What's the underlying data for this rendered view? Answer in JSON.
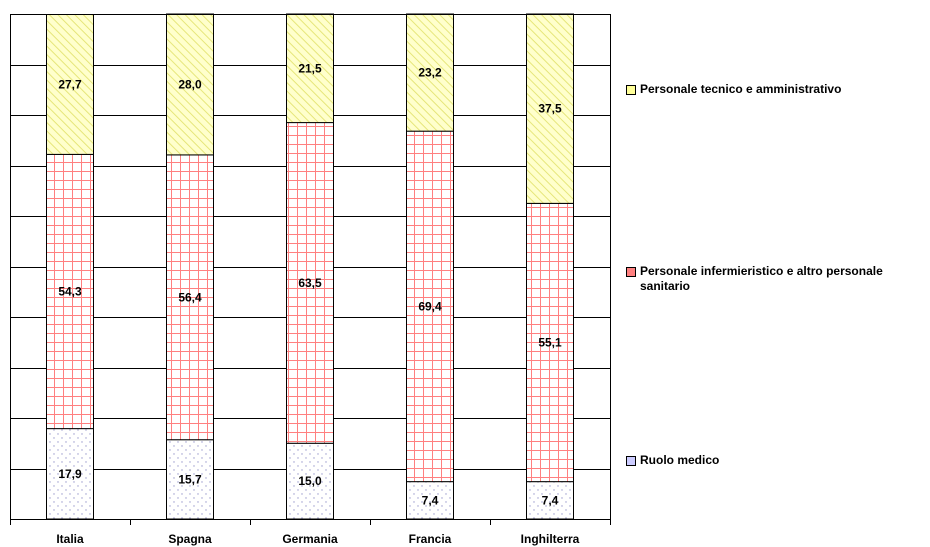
{
  "chart_data": {
    "type": "bar",
    "stacked": true,
    "categories": [
      "Italia",
      "Spagna",
      "Germania",
      "Francia",
      "Inghilterra"
    ],
    "series": [
      {
        "name": "Ruolo medico",
        "values": [
          17.9,
          15.7,
          15.0,
          7.4,
          7.4
        ],
        "labels": [
          "17,9",
          "15,7",
          "15,0",
          "7,4",
          "7,4"
        ],
        "color": "#ccccff",
        "pattern": "dots"
      },
      {
        "name": "Personale infermieristico e altro personale sanitario",
        "values": [
          54.3,
          56.4,
          63.5,
          69.4,
          55.1
        ],
        "labels": [
          "54,3",
          "56,4",
          "63,5",
          "69,4",
          "55,1"
        ],
        "color": "#ff8080",
        "pattern": "grid"
      },
      {
        "name": "Personale tecnico e amministrativo",
        "values": [
          27.7,
          28.0,
          21.5,
          23.2,
          37.5
        ],
        "labels": [
          "27,7",
          "28,0",
          "21,5",
          "23,2",
          "37,5"
        ],
        "color": "#ffff99",
        "pattern": "diagonal"
      }
    ],
    "ylim": [
      0,
      100
    ],
    "grid": true,
    "legend": "right",
    "title": "",
    "xlabel": "",
    "ylabel": ""
  }
}
